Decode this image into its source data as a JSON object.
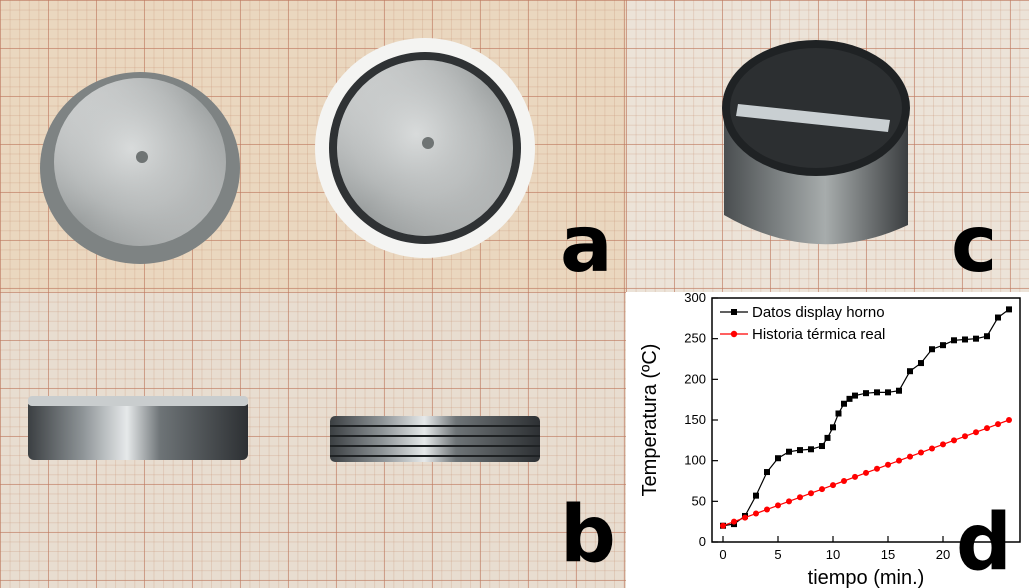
{
  "panels": {
    "a": {
      "label": "a"
    },
    "b": {
      "label": "b"
    },
    "c": {
      "label": "c"
    },
    "d": {
      "label": "d"
    }
  },
  "colors": {
    "grid_paper": "#ead7bf",
    "metal_light": "#d9dcdc",
    "metal_dark": "#2a2c2e",
    "series_black": "#000000",
    "series_red": "#ff0000"
  },
  "chart_data": {
    "type": "line",
    "xlabel": "tiempo (min.)",
    "ylabel": "Temperatura (ºC)",
    "xlim": [
      -1,
      27
    ],
    "ylim": [
      0,
      300
    ],
    "xticks": [
      0,
      5,
      10,
      15,
      20,
      25
    ],
    "yticks": [
      0,
      50,
      100,
      150,
      200,
      250,
      300
    ],
    "grid": false,
    "legend_position": "top-left",
    "series": [
      {
        "name": "Datos display horno",
        "color": "#000000",
        "marker": "square",
        "x": [
          0,
          1,
          2,
          3,
          4,
          5,
          6,
          7,
          8,
          9,
          9.5,
          10,
          10.5,
          11,
          11.5,
          12,
          13,
          14,
          15,
          16,
          17,
          18,
          19,
          20,
          21,
          22,
          23,
          24,
          25,
          26
        ],
        "y": [
          20,
          22,
          32,
          57,
          86,
          103,
          111,
          113,
          114,
          118,
          128,
          141,
          158,
          170,
          176,
          180,
          183,
          184,
          184,
          186,
          210,
          220,
          237,
          242,
          248,
          249,
          250,
          253,
          276,
          286
        ]
      },
      {
        "name": "Historia térmica real",
        "color": "#ff0000",
        "marker": "circle",
        "x": [
          0,
          1,
          2,
          3,
          4,
          5,
          6,
          7,
          8,
          9,
          10,
          11,
          12,
          13,
          14,
          15,
          16,
          17,
          18,
          19,
          20,
          21,
          22,
          23,
          24,
          25,
          26
        ],
        "y": [
          20,
          25,
          30,
          35,
          40,
          45,
          50,
          55,
          60,
          65,
          70,
          75,
          80,
          85,
          90,
          95,
          100,
          105,
          110,
          115,
          120,
          125,
          130,
          135,
          140,
          145,
          150
        ]
      }
    ]
  }
}
